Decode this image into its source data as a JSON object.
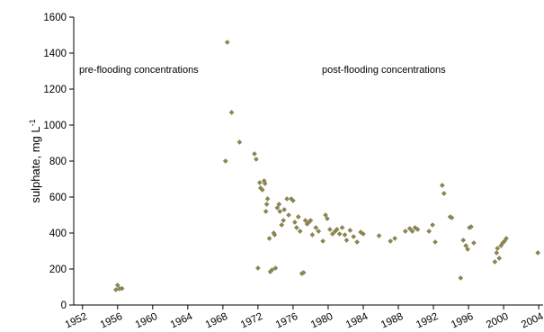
{
  "chart_data": {
    "type": "scatter",
    "ylabel": "sulphate, mg L",
    "ylabel_superscript": "-1",
    "xlim": [
      1951,
      2004.5
    ],
    "ylim": [
      0,
      1600
    ],
    "x_ticks": [
      1952,
      1956,
      1960,
      1964,
      1968,
      1972,
      1976,
      1980,
      1984,
      1988,
      1992,
      1996,
      2000,
      2004
    ],
    "y_ticks": [
      0,
      200,
      400,
      600,
      800,
      1000,
      1200,
      1400,
      1600
    ],
    "grid": false,
    "marker_color": "#8a8553",
    "annotations": [
      "pre-flooding concentrations",
      "post-flooding concentrations"
    ],
    "series": [
      {
        "points": [
          [
            1955.8,
            85
          ],
          [
            1956.0,
            110
          ],
          [
            1956.2,
            90
          ],
          [
            1956.5,
            92
          ],
          [
            1968.3,
            800
          ],
          [
            1968.5,
            1460
          ],
          [
            1969.0,
            1070
          ],
          [
            1969.9,
            905
          ],
          [
            1971.6,
            840
          ],
          [
            1971.8,
            810
          ],
          [
            1972.0,
            205
          ],
          [
            1972.2,
            680
          ],
          [
            1972.3,
            650
          ],
          [
            1972.5,
            640
          ],
          [
            1972.7,
            690
          ],
          [
            1972.8,
            675
          ],
          [
            1972.9,
            520
          ],
          [
            1973.0,
            560
          ],
          [
            1973.1,
            590
          ],
          [
            1973.3,
            370
          ],
          [
            1973.4,
            185
          ],
          [
            1973.6,
            195
          ],
          [
            1973.8,
            400
          ],
          [
            1973.9,
            390
          ],
          [
            1974.0,
            205
          ],
          [
            1974.2,
            540
          ],
          [
            1974.4,
            560
          ],
          [
            1974.5,
            520
          ],
          [
            1974.7,
            445
          ],
          [
            1974.9,
            470
          ],
          [
            1975.0,
            530
          ],
          [
            1975.3,
            590
          ],
          [
            1975.5,
            500
          ],
          [
            1975.8,
            590
          ],
          [
            1976.0,
            580
          ],
          [
            1976.2,
            460
          ],
          [
            1976.4,
            430
          ],
          [
            1976.6,
            490
          ],
          [
            1976.8,
            410
          ],
          [
            1977.0,
            175
          ],
          [
            1977.2,
            180
          ],
          [
            1977.4,
            470
          ],
          [
            1977.6,
            450
          ],
          [
            1977.8,
            460
          ],
          [
            1978.0,
            470
          ],
          [
            1978.2,
            390
          ],
          [
            1978.6,
            430
          ],
          [
            1978.9,
            410
          ],
          [
            1979.4,
            355
          ],
          [
            1979.7,
            500
          ],
          [
            1979.9,
            480
          ],
          [
            1980.2,
            420
          ],
          [
            1980.5,
            395
          ],
          [
            1980.8,
            410
          ],
          [
            1981.0,
            420
          ],
          [
            1981.3,
            395
          ],
          [
            1981.6,
            430
          ],
          [
            1981.9,
            390
          ],
          [
            1982.1,
            360
          ],
          [
            1982.5,
            415
          ],
          [
            1982.9,
            380
          ],
          [
            1983.3,
            350
          ],
          [
            1983.7,
            405
          ],
          [
            1984.0,
            395
          ],
          [
            1985.8,
            385
          ],
          [
            1987.1,
            355
          ],
          [
            1987.6,
            370
          ],
          [
            1988.8,
            410
          ],
          [
            1989.3,
            425
          ],
          [
            1989.6,
            410
          ],
          [
            1989.9,
            430
          ],
          [
            1990.2,
            420
          ],
          [
            1991.5,
            410
          ],
          [
            1991.9,
            445
          ],
          [
            1992.2,
            350
          ],
          [
            1993.0,
            665
          ],
          [
            1993.2,
            620
          ],
          [
            1993.9,
            490
          ],
          [
            1994.1,
            485
          ],
          [
            1995.1,
            150
          ],
          [
            1995.4,
            360
          ],
          [
            1995.7,
            330
          ],
          [
            1995.9,
            310
          ],
          [
            1996.1,
            430
          ],
          [
            1996.3,
            435
          ],
          [
            1996.6,
            345
          ],
          [
            1999.0,
            240
          ],
          [
            1999.2,
            290
          ],
          [
            1999.3,
            315
          ],
          [
            1999.5,
            260
          ],
          [
            1999.7,
            330
          ],
          [
            1999.9,
            345
          ],
          [
            2000.1,
            355
          ],
          [
            2000.3,
            370
          ],
          [
            2003.9,
            290
          ]
        ]
      }
    ]
  }
}
